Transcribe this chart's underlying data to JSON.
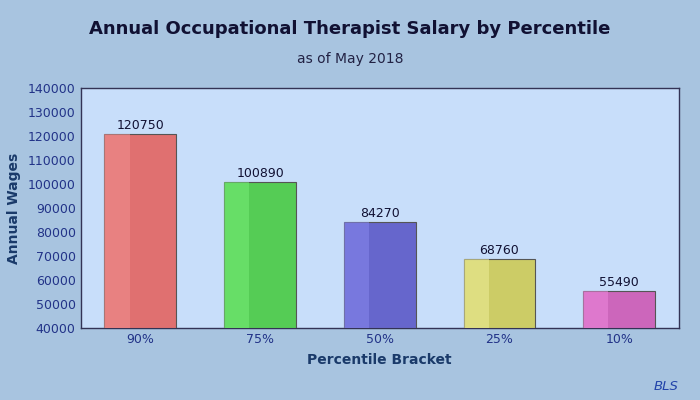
{
  "title": "Annual Occupational Therapist Salary by Percentile",
  "subtitle": "as of May 2018",
  "xlabel": "Percentile Bracket",
  "ylabel": "Annual Wages",
  "categories": [
    "90%",
    "75%",
    "50%",
    "25%",
    "10%"
  ],
  "values": [
    120750,
    100890,
    84270,
    68760,
    55490
  ],
  "bar_colors": [
    "#E07070",
    "#55CC55",
    "#6666CC",
    "#CCCC66",
    "#CC66BB"
  ],
  "bar_highlight": [
    "#F09090",
    "#77EE77",
    "#8888EE",
    "#EEEE99",
    "#EE88DD"
  ],
  "ylim": [
    40000,
    140000
  ],
  "yticks": [
    40000,
    50000,
    60000,
    70000,
    80000,
    90000,
    100000,
    110000,
    120000,
    130000,
    140000
  ],
  "fig_bg": "#A8C4E0",
  "plot_bg_top": "#C8DEFA",
  "plot_bg_bottom": "#E8F4FF",
  "title_fontsize": 13,
  "subtitle_fontsize": 10,
  "axis_label_fontsize": 10,
  "tick_fontsize": 9,
  "annotation_fontsize": 9,
  "bls_text": "BLS",
  "bls_color": "#2244AA",
  "bar_width": 0.6,
  "spine_color": "#333355",
  "xlabel_color": "#1A3A6A",
  "ylabel_color": "#1A3A6A",
  "title_color": "#111133",
  "subtitle_color": "#222244",
  "tick_color": "#223388",
  "annotation_color": "#111133"
}
